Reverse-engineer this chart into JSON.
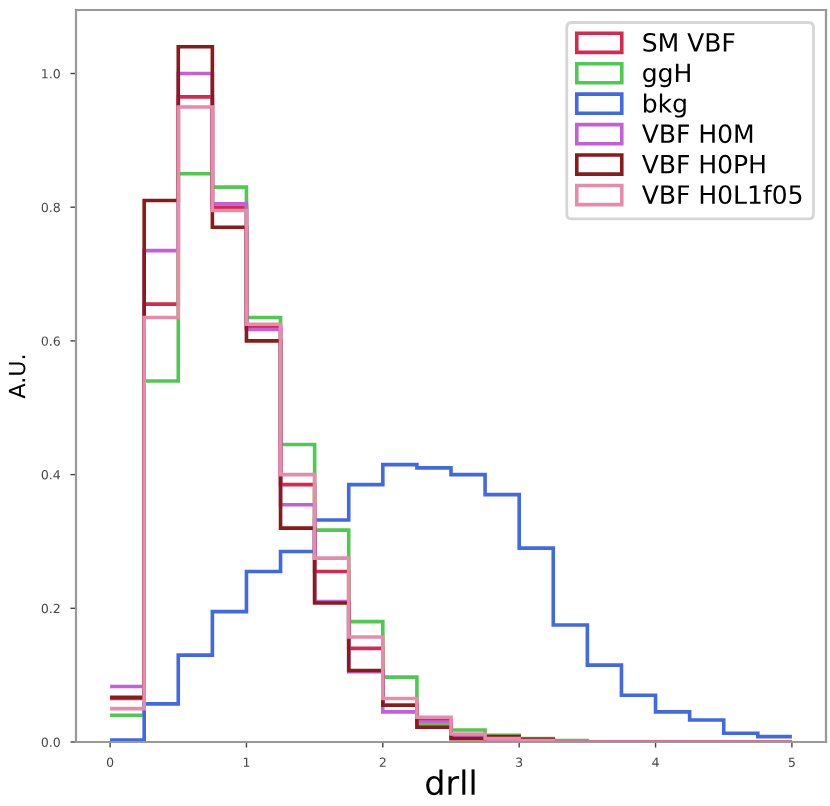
{
  "chart_data": {
    "type": "histogram",
    "xlabel": "drll",
    "ylabel": "A.U.",
    "bins": [
      0,
      0.25,
      0.5,
      0.75,
      1,
      1.25,
      1.5,
      1.75,
      2,
      2.25,
      2.5,
      2.75,
      3,
      3.25,
      3.5,
      3.75,
      4,
      4.25,
      4.5,
      4.75,
      5
    ],
    "series": [
      {
        "name": "SM VBF",
        "color": "#d6294f",
        "values": [
          0.065,
          0.655,
          0.965,
          0.8,
          0.62,
          0.385,
          0.255,
          0.14,
          0.055,
          0.032,
          0.01,
          0.005,
          0.002,
          0,
          0,
          0,
          0,
          0,
          0,
          0
        ]
      },
      {
        "name": "ggH",
        "color": "#4fc94f",
        "values": [
          0.04,
          0.54,
          0.85,
          0.83,
          0.635,
          0.445,
          0.317,
          0.18,
          0.097,
          0.025,
          0.018,
          0.01,
          0.005,
          0.002,
          0,
          0,
          0,
          0,
          0,
          0
        ]
      },
      {
        "name": "bkg",
        "color": "#4169e1",
        "values": [
          0.003,
          0.057,
          0.13,
          0.195,
          0.255,
          0.285,
          0.332,
          0.385,
          0.415,
          0.41,
          0.4,
          0.37,
          0.29,
          0.175,
          0.115,
          0.07,
          0.045,
          0.033,
          0.013,
          0.008
        ]
      },
      {
        "name": "VBF H0M",
        "color": "#c55fd6",
        "values": [
          0.083,
          0.735,
          1.0,
          0.805,
          0.617,
          0.355,
          0.21,
          0.105,
          0.045,
          0.03,
          0.008,
          0.005,
          0.002,
          0,
          0,
          0,
          0,
          0,
          0,
          0
        ]
      },
      {
        "name": "VBF H0PH",
        "color": "#8b1a1a",
        "values": [
          0.067,
          0.81,
          1.04,
          0.77,
          0.6,
          0.32,
          0.208,
          0.107,
          0.055,
          0.022,
          0.005,
          0.008,
          0.004,
          0,
          0,
          0,
          0,
          0,
          0,
          0
        ]
      },
      {
        "name": "VBF H0L1f05",
        "color": "#e88aac",
        "values": [
          0.05,
          0.635,
          0.95,
          0.795,
          0.625,
          0.4,
          0.275,
          0.157,
          0.065,
          0.037,
          0.012,
          0.005,
          0.002,
          0,
          0,
          0,
          0,
          0,
          0,
          0
        ]
      }
    ],
    "xlim": [
      -0.25,
      5.25
    ],
    "ylim": [
      0,
      1.095
    ],
    "xticks": [
      0,
      1,
      2,
      3,
      4,
      5
    ],
    "yticks": [
      {
        "value": 0,
        "label": "0.0"
      },
      {
        "value": 0.2,
        "label": "0.2"
      },
      {
        "value": 0.4,
        "label": "0.4"
      },
      {
        "value": 0.6,
        "label": "0.6"
      },
      {
        "value": 0.8,
        "label": "0.8"
      },
      {
        "value": 1.0,
        "label": "1.0"
      }
    ],
    "legend": "top right",
    "grid": false
  }
}
